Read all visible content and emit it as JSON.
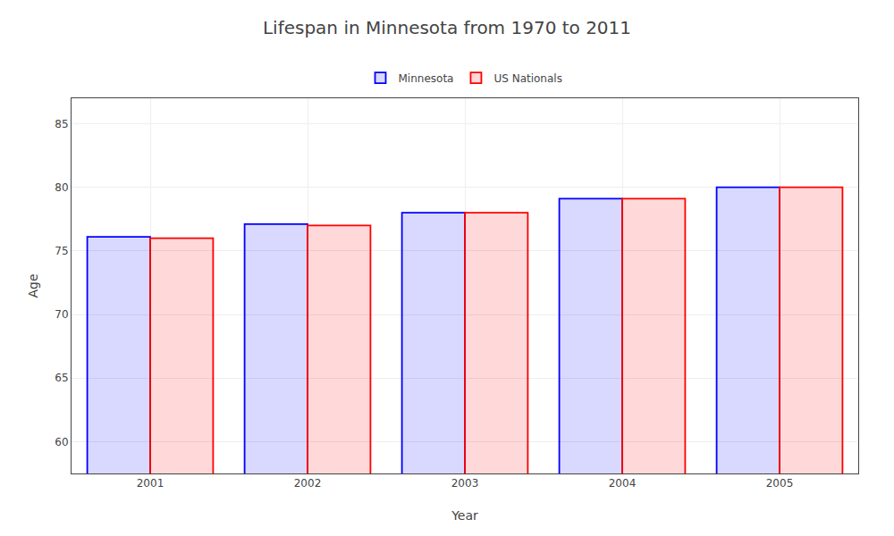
{
  "chart_data": {
    "type": "bar",
    "title": "Lifespan in Minnesota from 1970 to 2011",
    "xlabel": "Year",
    "ylabel": "Age",
    "categories": [
      "2001",
      "2002",
      "2003",
      "2004",
      "2005"
    ],
    "series": [
      {
        "name": "Minnesota",
        "color": "#0000ff",
        "values": [
          76.1,
          77.1,
          78.0,
          79.1,
          80.0
        ]
      },
      {
        "name": "US Nationals",
        "color": "#ff0000",
        "values": [
          76.0,
          77.0,
          78.0,
          79.1,
          80.0
        ]
      }
    ],
    "ylim": [
      57.5,
      87
    ],
    "yticks": [
      60,
      65,
      70,
      75,
      80,
      85
    ],
    "grid": true,
    "legend": "top"
  }
}
